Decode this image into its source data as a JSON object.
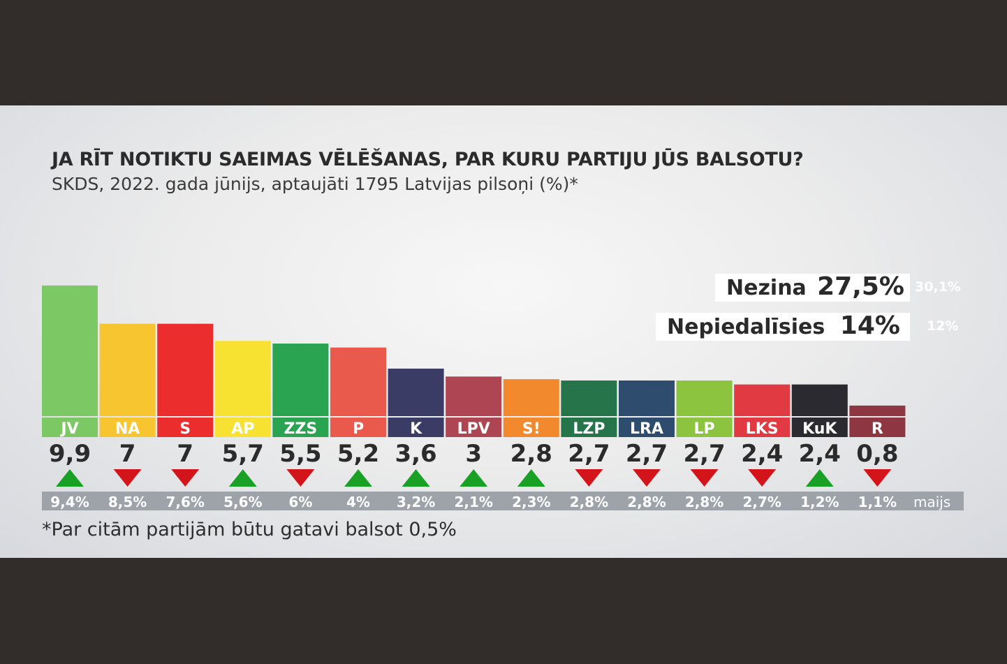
{
  "header": {
    "title": "JA RĪT NOTIKTU SAEIMAS VĒLĒŠANAS, PAR KURU PARTIJU JŪS BALSOTU?",
    "subtitle": "SKDS, 2022. gada jūnijs, aptaujāti 1795 Latvijas pilsoņi (%)*"
  },
  "side": {
    "nezina": {
      "label": "Nezina",
      "value": "27,5%",
      "previous": "30,1%"
    },
    "nepiedalisies": {
      "label": "Nepiedalīsies",
      "value": "14%",
      "previous": "12%"
    }
  },
  "footnote": "*Par citām partijām būtu gatavi balsot 0,5%",
  "previous_label": "maijs",
  "colors": {
    "up": "#18a125",
    "down": "#d3141a",
    "previous_strip": "#9ea3aa"
  },
  "chart_data": {
    "type": "bar",
    "title": "JA RĪT NOTIKTU SAEIMAS VĒLĒŠANAS, PAR KURU PARTIJU JŪS BALSOTU?",
    "subtitle": "SKDS, 2022. gada jūnijs, aptaujāti 1795 Latvijas pilsoņi (%)*",
    "ylim": [
      0,
      10
    ],
    "grid": false,
    "bars": [
      {
        "party": "JV",
        "value": 9.9,
        "value_label": "9,9",
        "previous": 9.4,
        "previous_label": "9,4%",
        "trend": "up",
        "color": "#7bc865"
      },
      {
        "party": "NA",
        "value": 7,
        "value_label": "7",
        "previous": 8.5,
        "previous_label": "8,5%",
        "trend": "down",
        "color": "#f6c530"
      },
      {
        "party": "S",
        "value": 7,
        "value_label": "7",
        "previous": 7.6,
        "previous_label": "7,6%",
        "trend": "down",
        "color": "#ec2d2d"
      },
      {
        "party": "AP",
        "value": 5.7,
        "value_label": "5,7",
        "previous": 5.6,
        "previous_label": "5,6%",
        "trend": "up",
        "color": "#f8e231"
      },
      {
        "party": "ZZS",
        "value": 5.5,
        "value_label": "5,5",
        "previous": 6,
        "previous_label": "6%",
        "trend": "down",
        "color": "#2aa450"
      },
      {
        "party": "P",
        "value": 5.2,
        "value_label": "5,2",
        "previous": 4,
        "previous_label": "4%",
        "trend": "up",
        "color": "#e95a4c"
      },
      {
        "party": "K",
        "value": 3.6,
        "value_label": "3,6",
        "previous": 3.2,
        "previous_label": "3,2%",
        "trend": "up",
        "color": "#3b3c66"
      },
      {
        "party": "LPV",
        "value": 3,
        "value_label": "3",
        "previous": 2.1,
        "previous_label": "2,1%",
        "trend": "up",
        "color": "#ad4553"
      },
      {
        "party": "S!",
        "value": 2.8,
        "value_label": "2,8",
        "previous": 2.3,
        "previous_label": "2,3%",
        "trend": "up",
        "color": "#f2892c"
      },
      {
        "party": "LZP",
        "value": 2.7,
        "value_label": "2,7",
        "previous": 2.8,
        "previous_label": "2,8%",
        "trend": "down",
        "color": "#25744a"
      },
      {
        "party": "LRA",
        "value": 2.7,
        "value_label": "2,7",
        "previous": 2.8,
        "previous_label": "2,8%",
        "trend": "down",
        "color": "#2e4c6e"
      },
      {
        "party": "LP",
        "value": 2.7,
        "value_label": "2,7",
        "previous": 2.8,
        "previous_label": "2,8%",
        "trend": "down",
        "color": "#8cc440"
      },
      {
        "party": "LKS",
        "value": 2.4,
        "value_label": "2,4",
        "previous": 2.7,
        "previous_label": "2,7%",
        "trend": "down",
        "color": "#e13a43"
      },
      {
        "party": "KuK",
        "value": 2.4,
        "value_label": "2,4",
        "previous": 1.2,
        "previous_label": "1,2%",
        "trend": "up",
        "color": "#2b2a30"
      },
      {
        "party": "R",
        "value": 0.8,
        "value_label": "0,8",
        "previous": 1.1,
        "previous_label": "1,1%",
        "trend": "down",
        "color": "#8e3641"
      }
    ]
  }
}
